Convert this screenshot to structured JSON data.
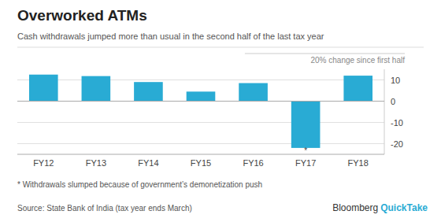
{
  "chart_data": {
    "type": "bar",
    "title": "Overworked ATMs",
    "subtitle": "Cash withdrawals jumped more than usual in the second half of the last tax year",
    "ylabel": "20% change since first half",
    "categories": [
      "FY12",
      "FY13",
      "FY14",
      "FY15",
      "FY16",
      "FY17",
      "FY18"
    ],
    "values": [
      12.5,
      11.8,
      9.0,
      4.5,
      8.5,
      -22.0,
      12.0
    ],
    "color": "#29ABD4",
    "ylim": [
      -25,
      15
    ],
    "yticks": [
      -20,
      -10,
      0,
      10
    ],
    "grid": true,
    "footnote": "* Withdrawals slumped because of government’s demonetization push",
    "source": "Source: State Bank of India (tax year ends March)",
    "annotations": [
      {
        "text": "*",
        "x": "FY17",
        "y": -23.5
      },
      {
        "text": "Bloomberg"
      },
      {
        "text": "QuickTake"
      }
    ]
  }
}
